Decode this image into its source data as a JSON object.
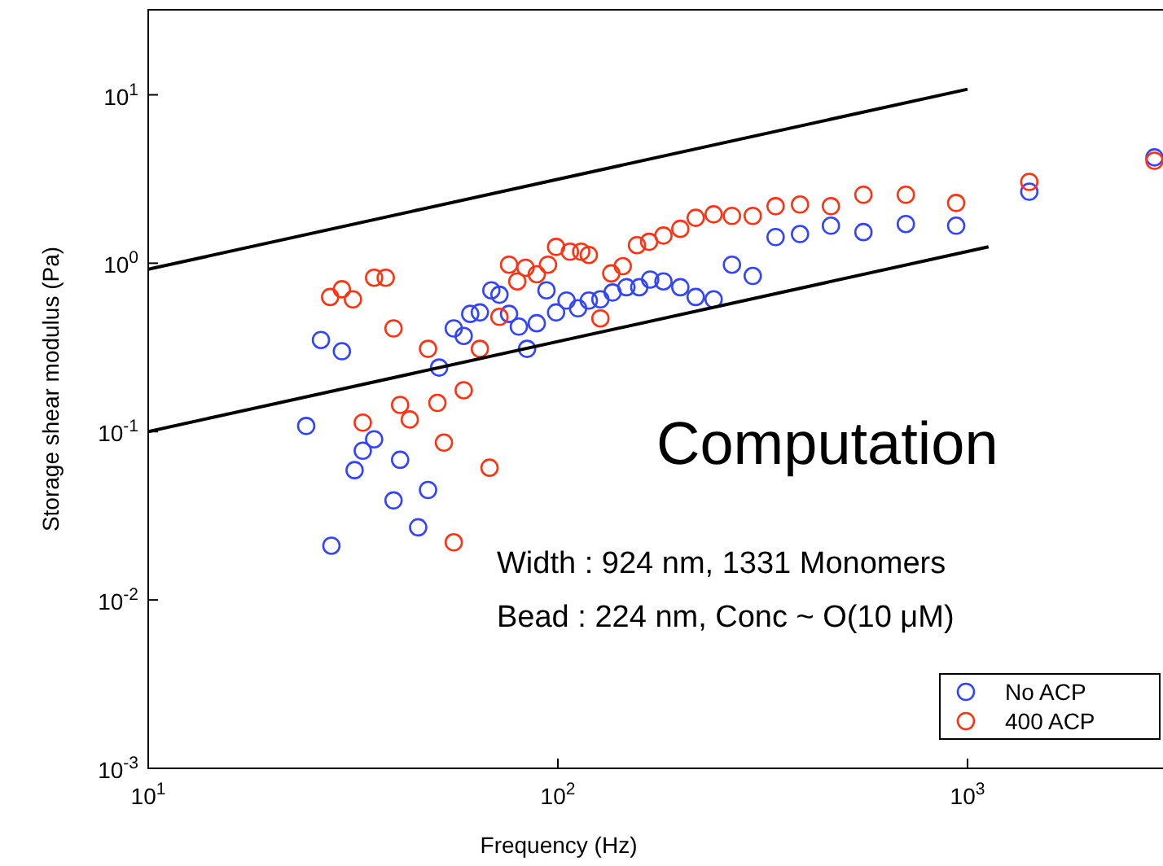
{
  "chart_data": {
    "type": "scatter",
    "xlabel": "Frequency (Hz)",
    "ylabel": "Storage shear modulus (Pa)",
    "log": "xy",
    "grid": false,
    "marker": "circle",
    "legend": "bottom right",
    "xlim": [
      10,
      3000
    ],
    "ylim": [
      0.001,
      32
    ],
    "xticks": [
      {
        "value": 10,
        "label": "10$^{1}$"
      },
      {
        "value": 100,
        "label": "10$^{2}$"
      },
      {
        "value": 1000,
        "label": "10$^{3}$"
      }
    ],
    "yticks": [
      {
        "value": 0.001,
        "label": "10$^{-3}$"
      },
      {
        "value": 0.01,
        "label": "10$^{-2}$"
      },
      {
        "value": 0.1,
        "label": "10$^{-1}$"
      },
      {
        "value": 1,
        "label": "10$^{0}$"
      },
      {
        "value": 10,
        "label": "10$^{1}$"
      }
    ],
    "annotations": [
      "Computation",
      "Width : 924 nm, 1331 Monomers",
      "Bead : 224 nm, Conc ~ O(10 μM)"
    ],
    "series": [
      {
        "name": "No ACP",
        "color": "#3344ff",
        "x": [
          24.3,
          26.4,
          28,
          29.7,
          31.9,
          33.4,
          35.6,
          39.7,
          41.2,
          45.6,
          48.2,
          51.3,
          55.7,
          58.9,
          61.1,
          64.5,
          68.8,
          72,
          76,
          80.3,
          84.1,
          88.8,
          93.8,
          99,
          105,
          112,
          119,
          127,
          136,
          147,
          158,
          168,
          181,
          199,
          217,
          240,
          266,
          299,
          340,
          390,
          464,
          557,
          707,
          938,
          1415,
          2860
        ],
        "values": [
          0.108,
          0.35,
          0.021,
          0.3,
          0.059,
          0.077,
          0.09,
          0.039,
          0.068,
          0.027,
          0.045,
          0.24,
          0.41,
          0.37,
          0.5,
          0.51,
          0.69,
          0.65,
          0.5,
          0.42,
          0.31,
          0.44,
          0.69,
          0.51,
          0.6,
          0.54,
          0.6,
          0.61,
          0.67,
          0.72,
          0.72,
          0.8,
          0.78,
          0.72,
          0.63,
          0.61,
          0.98,
          0.84,
          1.43,
          1.49,
          1.67,
          1.53,
          1.71,
          1.67,
          2.66,
          4.25
        ]
      },
      {
        "name": "400 ACP",
        "color": "#ff3311",
        "x": [
          27.8,
          29.7,
          31.6,
          33.4,
          35.6,
          38,
          39.7,
          41.2,
          43.5,
          48.2,
          50.8,
          52.7,
          55.7,
          58.9,
          64.5,
          68.1,
          72,
          76,
          79.6,
          83.4,
          88.8,
          94.6,
          99,
          107,
          114,
          119,
          127,
          135,
          144,
          156,
          167,
          181,
          199,
          217,
          240,
          266,
          299,
          340,
          390,
          464,
          557,
          707,
          938,
          1415,
          2860
        ],
        "values": [
          0.63,
          0.7,
          0.61,
          0.113,
          0.82,
          0.82,
          0.41,
          0.144,
          0.118,
          0.31,
          0.148,
          0.086,
          0.022,
          0.176,
          0.31,
          0.061,
          0.48,
          0.98,
          0.78,
          0.94,
          0.86,
          0.98,
          1.25,
          1.17,
          1.17,
          1.12,
          0.47,
          0.87,
          0.96,
          1.28,
          1.34,
          1.46,
          1.6,
          1.86,
          1.95,
          1.91,
          1.91,
          2.18,
          2.23,
          2.18,
          2.55,
          2.55,
          2.28,
          3.04,
          4.06
        ]
      },
      {
        "type": "line",
        "marker": "none",
        "color": "#000000",
        "x": [
          10,
          1000
        ],
        "values": [
          0.92,
          10.8
        ]
      },
      {
        "type": "line",
        "marker": "none",
        "color": "#000000",
        "x": [
          10,
          1125
        ],
        "values": [
          0.1,
          1.25
        ]
      }
    ]
  }
}
